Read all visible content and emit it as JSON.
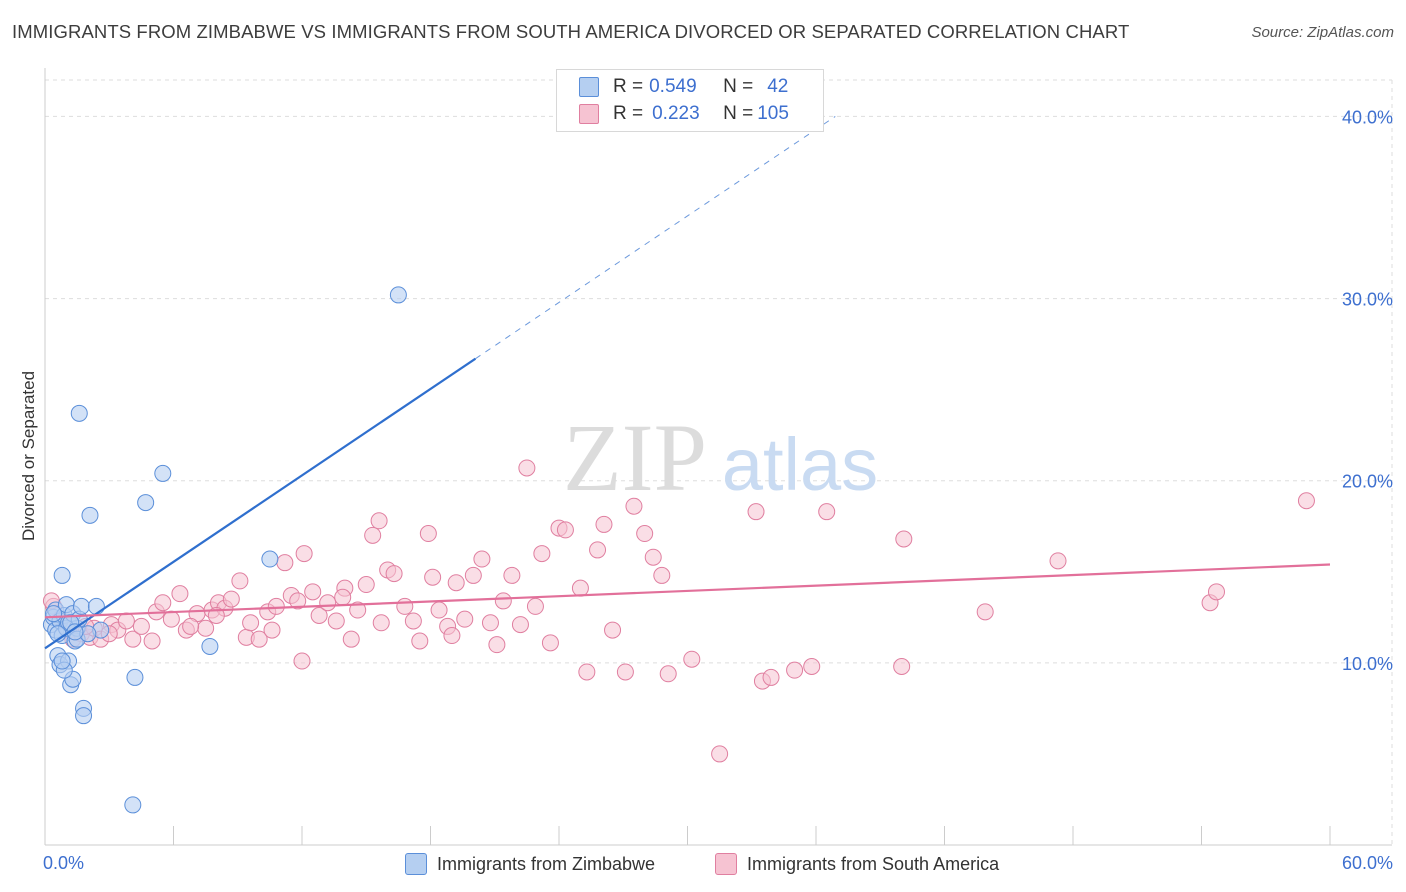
{
  "title": "IMMIGRANTS FROM ZIMBABWE VS IMMIGRANTS FROM SOUTH AMERICA DIVORCED OR SEPARATED CORRELATION CHART",
  "source": "Source: ZipAtlas.com",
  "watermark": {
    "zip": "ZIP",
    "atlas": "atlas"
  },
  "stats": {
    "row1": {
      "r_label": "R =",
      "r_value": "0.549",
      "n_label": "N =",
      "n_value": "42"
    },
    "row2": {
      "r_label": "R =",
      "r_value": "0.223",
      "n_label": "N =",
      "n_value": "105"
    }
  },
  "legend": {
    "series1": "Immigrants from Zimbabwe",
    "series2": "Immigrants from South America"
  },
  "colors": {
    "blue_fill": "#b5cff1",
    "blue_stroke": "#5b8fd9",
    "blue_line": "#2f6fce",
    "pink_fill": "#f6c3d2",
    "pink_stroke": "#e07fa0",
    "pink_line": "#e2709a",
    "axis_text": "#3d6fcf",
    "grid": "#dddddd"
  },
  "chart_data": {
    "type": "scatter",
    "title": "IMMIGRANTS FROM ZIMBABWE VS IMMIGRANTS FROM SOUTH AMERICA DIVORCED OR SEPARATED CORRELATION CHART",
    "xlabel": "",
    "ylabel": "Divorced or Separated",
    "xlim": [
      0,
      60
    ],
    "ylim": [
      0,
      42
    ],
    "x_tick_labels": [
      "0.0%",
      "60.0%"
    ],
    "y_ticks": [
      10,
      20,
      30,
      40
    ],
    "y_tick_labels": [
      "10.0%",
      "20.0%",
      "30.0%",
      "40.0%"
    ],
    "series": [
      {
        "name": "Immigrants from Zimbabwe",
        "R": 0.549,
        "N": 42,
        "trend": {
          "x": [
            0,
            20.1
          ],
          "y": [
            10.8,
            26.7
          ],
          "dashed_to": [
            36.9,
            40.0
          ]
        },
        "points": [
          [
            0.3,
            12.1
          ],
          [
            0.4,
            12.5
          ],
          [
            0.5,
            11.8
          ],
          [
            0.5,
            12.9
          ],
          [
            0.6,
            10.4
          ],
          [
            0.7,
            9.9
          ],
          [
            0.7,
            12.3
          ],
          [
            0.8,
            14.8
          ],
          [
            0.8,
            11.5
          ],
          [
            0.9,
            12.6
          ],
          [
            1.0,
            13.2
          ],
          [
            1.0,
            11.9
          ],
          [
            1.1,
            12.2
          ],
          [
            1.1,
            10.1
          ],
          [
            1.2,
            8.8
          ],
          [
            1.3,
            9.1
          ],
          [
            1.3,
            12.7
          ],
          [
            1.4,
            11.2
          ],
          [
            1.5,
            11.9
          ],
          [
            1.6,
            12.4
          ],
          [
            1.7,
            13.1
          ],
          [
            1.8,
            7.5
          ],
          [
            1.8,
            7.1
          ],
          [
            2.1,
            18.1
          ],
          [
            2.4,
            13.1
          ],
          [
            2.6,
            11.8
          ],
          [
            1.6,
            23.7
          ],
          [
            4.2,
            9.2
          ],
          [
            4.7,
            18.8
          ],
          [
            5.5,
            20.4
          ],
          [
            7.7,
            10.9
          ],
          [
            10.5,
            15.7
          ],
          [
            16.5,
            30.2
          ],
          [
            4.1,
            2.2
          ],
          [
            0.9,
            9.6
          ],
          [
            1.5,
            11.3
          ],
          [
            0.6,
            11.6
          ],
          [
            1.2,
            12.2
          ],
          [
            0.4,
            12.7
          ],
          [
            2.0,
            11.6
          ],
          [
            0.8,
            10.1
          ],
          [
            1.4,
            11.7
          ]
        ]
      },
      {
        "name": "Immigrants from South America",
        "R": 0.223,
        "N": 105,
        "trend": {
          "x": [
            0,
            60
          ],
          "y": [
            12.5,
            15.4
          ]
        },
        "points": [
          [
            0.4,
            13.1
          ],
          [
            0.7,
            12.4
          ],
          [
            1.1,
            11.8
          ],
          [
            1.3,
            11.3
          ],
          [
            1.7,
            11.6
          ],
          [
            2.1,
            11.4
          ],
          [
            2.3,
            11.9
          ],
          [
            2.6,
            11.3
          ],
          [
            3.1,
            12.1
          ],
          [
            3.4,
            11.8
          ],
          [
            3.8,
            12.3
          ],
          [
            4.1,
            11.3
          ],
          [
            4.5,
            12.0
          ],
          [
            5.0,
            11.2
          ],
          [
            5.2,
            12.8
          ],
          [
            5.5,
            13.3
          ],
          [
            5.9,
            12.4
          ],
          [
            6.3,
            13.8
          ],
          [
            6.6,
            11.8
          ],
          [
            7.1,
            12.7
          ],
          [
            7.5,
            11.9
          ],
          [
            7.8,
            12.9
          ],
          [
            8.1,
            13.3
          ],
          [
            8.4,
            13.0
          ],
          [
            8.7,
            13.5
          ],
          [
            9.1,
            14.5
          ],
          [
            9.4,
            11.4
          ],
          [
            9.6,
            12.2
          ],
          [
            10.0,
            11.3
          ],
          [
            10.4,
            12.8
          ],
          [
            10.8,
            13.1
          ],
          [
            11.2,
            15.5
          ],
          [
            11.5,
            13.7
          ],
          [
            11.8,
            13.4
          ],
          [
            12.1,
            16.0
          ],
          [
            12.5,
            13.9
          ],
          [
            12.8,
            12.6
          ],
          [
            13.2,
            13.3
          ],
          [
            13.6,
            12.3
          ],
          [
            14.0,
            14.1
          ],
          [
            14.3,
            11.3
          ],
          [
            14.6,
            12.9
          ],
          [
            15.0,
            14.3
          ],
          [
            15.3,
            17.0
          ],
          [
            15.6,
            17.8
          ],
          [
            16.0,
            15.1
          ],
          [
            16.3,
            14.9
          ],
          [
            16.8,
            13.1
          ],
          [
            17.2,
            12.3
          ],
          [
            17.5,
            11.2
          ],
          [
            17.9,
            17.1
          ],
          [
            18.1,
            14.7
          ],
          [
            18.4,
            12.9
          ],
          [
            18.8,
            12.0
          ],
          [
            19.2,
            14.4
          ],
          [
            19.6,
            12.4
          ],
          [
            20.0,
            14.8
          ],
          [
            20.4,
            15.7
          ],
          [
            20.8,
            12.2
          ],
          [
            21.1,
            11.0
          ],
          [
            21.4,
            13.4
          ],
          [
            21.8,
            14.8
          ],
          [
            22.2,
            12.1
          ],
          [
            22.5,
            20.7
          ],
          [
            22.9,
            13.1
          ],
          [
            23.2,
            16.0
          ],
          [
            23.6,
            11.1
          ],
          [
            24.0,
            17.4
          ],
          [
            24.3,
            17.3
          ],
          [
            25.0,
            14.1
          ],
          [
            25.3,
            9.5
          ],
          [
            25.8,
            16.2
          ],
          [
            26.1,
            17.6
          ],
          [
            27.1,
            9.5
          ],
          [
            27.5,
            18.6
          ],
          [
            28.0,
            17.1
          ],
          [
            28.4,
            15.8
          ],
          [
            28.8,
            14.8
          ],
          [
            29.1,
            9.4
          ],
          [
            30.2,
            10.2
          ],
          [
            31.5,
            5.0
          ],
          [
            33.2,
            18.3
          ],
          [
            33.5,
            9.0
          ],
          [
            33.9,
            9.2
          ],
          [
            35.0,
            9.6
          ],
          [
            35.8,
            9.8
          ],
          [
            36.5,
            18.3
          ],
          [
            40.0,
            9.8
          ],
          [
            40.1,
            16.8
          ],
          [
            43.9,
            12.8
          ],
          [
            47.3,
            15.6
          ],
          [
            54.4,
            13.3
          ],
          [
            54.7,
            13.9
          ],
          [
            58.9,
            18.9
          ],
          [
            1.9,
            12.0
          ],
          [
            3.0,
            11.6
          ],
          [
            6.8,
            12.0
          ],
          [
            12.0,
            10.1
          ],
          [
            10.6,
            11.8
          ],
          [
            15.7,
            12.2
          ],
          [
            8.0,
            12.6
          ],
          [
            19.0,
            11.5
          ],
          [
            26.5,
            11.8
          ],
          [
            13.9,
            13.6
          ],
          [
            0.3,
            13.4
          ]
        ]
      }
    ]
  }
}
